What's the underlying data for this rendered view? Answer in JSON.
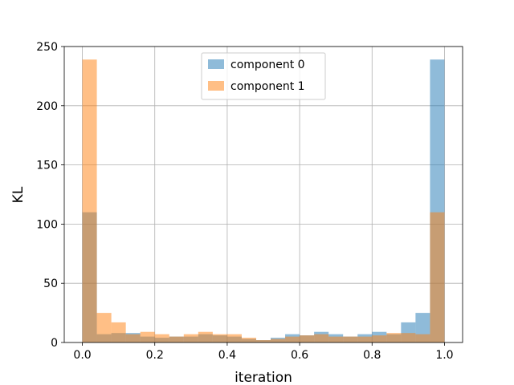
{
  "chart_data": {
    "type": "bar",
    "subtype": "overlapping-histogram",
    "title": "",
    "xlabel": "iteration",
    "ylabel": "KL",
    "xlim": [
      -0.05,
      1.05
    ],
    "ylim": [
      0,
      250
    ],
    "xticks": [
      "0.0",
      "0.2",
      "0.4",
      "0.6",
      "0.8",
      "1.0"
    ],
    "yticks": [
      "0",
      "50",
      "100",
      "150",
      "200",
      "250"
    ],
    "grid": true,
    "legend_position": "top-center",
    "bin_edges": [
      0.0,
      0.04,
      0.08,
      0.12,
      0.16,
      0.2,
      0.24,
      0.28,
      0.32,
      0.36,
      0.4,
      0.44,
      0.48,
      0.52,
      0.56,
      0.6,
      0.64,
      0.68,
      0.72,
      0.76,
      0.8,
      0.84,
      0.88,
      0.92,
      0.96,
      1.0
    ],
    "series": [
      {
        "name": "component 0",
        "color": "#1f77b4",
        "alpha": 0.5,
        "values": [
          110,
          7,
          8,
          8,
          5,
          4,
          5,
          5,
          7,
          6,
          5,
          3,
          2,
          4,
          7,
          6,
          9,
          7,
          5,
          7,
          9,
          7,
          17,
          25,
          239
        ]
      },
      {
        "name": "component 1",
        "color": "#ff7f0e",
        "alpha": 0.5,
        "values": [
          239,
          25,
          17,
          7,
          9,
          7,
          5,
          7,
          9,
          7,
          7,
          4,
          2,
          3,
          5,
          6,
          7,
          5,
          5,
          5,
          6,
          8,
          8,
          7,
          110
        ]
      }
    ]
  }
}
